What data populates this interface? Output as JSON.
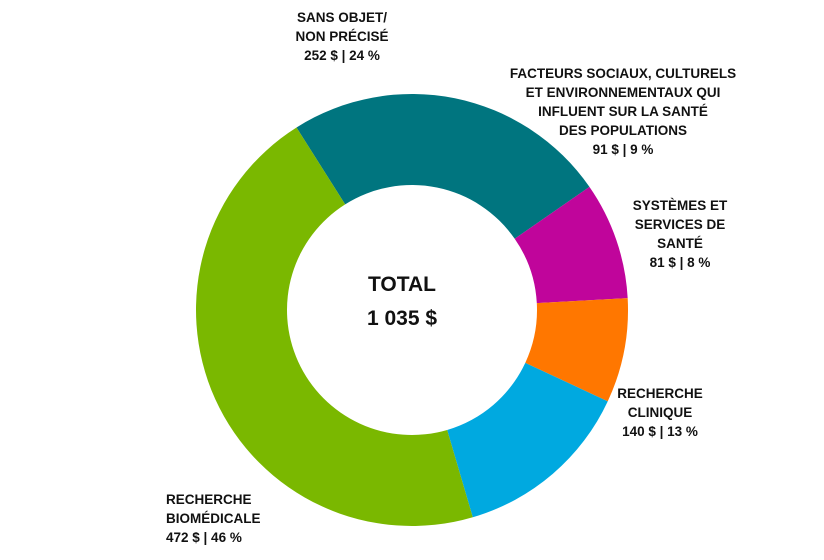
{
  "chart_data": {
    "type": "pie",
    "style": "donut",
    "center": {
      "line1": "TOTAL",
      "line2": "1 035 $"
    },
    "slices": [
      {
        "key": "sans-objet",
        "label_lines": [
          "SANS OBJET/",
          "NON PRÉCISÉ"
        ],
        "value": 252,
        "percent": 24,
        "value_text": "252 $ | 24 %",
        "color": "#00757F"
      },
      {
        "key": "facteurs-sociaux",
        "label_lines": [
          "FACTEURS SOCIAUX, CULTURELS",
          "ET ENVIRONNEMENTAUX QUI",
          "INFLUENT SUR LA SANTÉ",
          "DES POPULATIONS"
        ],
        "value": 91,
        "percent": 9,
        "value_text": "91 $ | 9 %",
        "color": "#C0059B"
      },
      {
        "key": "systemes-services",
        "label_lines": [
          "SYSTÈMES ET",
          "SERVICES DE",
          "SANTÉ"
        ],
        "value": 81,
        "percent": 8,
        "value_text": "81 $ | 8 %",
        "color": "#FF7700"
      },
      {
        "key": "recherche-clinique",
        "label_lines": [
          "RECHERCHE",
          "CLINIQUE"
        ],
        "value": 140,
        "percent": 13,
        "value_text": "140 $ | 13 %",
        "color": "#00A9E0"
      },
      {
        "key": "recherche-biomedicale",
        "label_lines": [
          "RECHERCHE",
          "BIOMÉDICALE"
        ],
        "value": 472,
        "percent": 46,
        "value_text": "472 $ | 46 %",
        "color": "#7AB800"
      }
    ]
  }
}
